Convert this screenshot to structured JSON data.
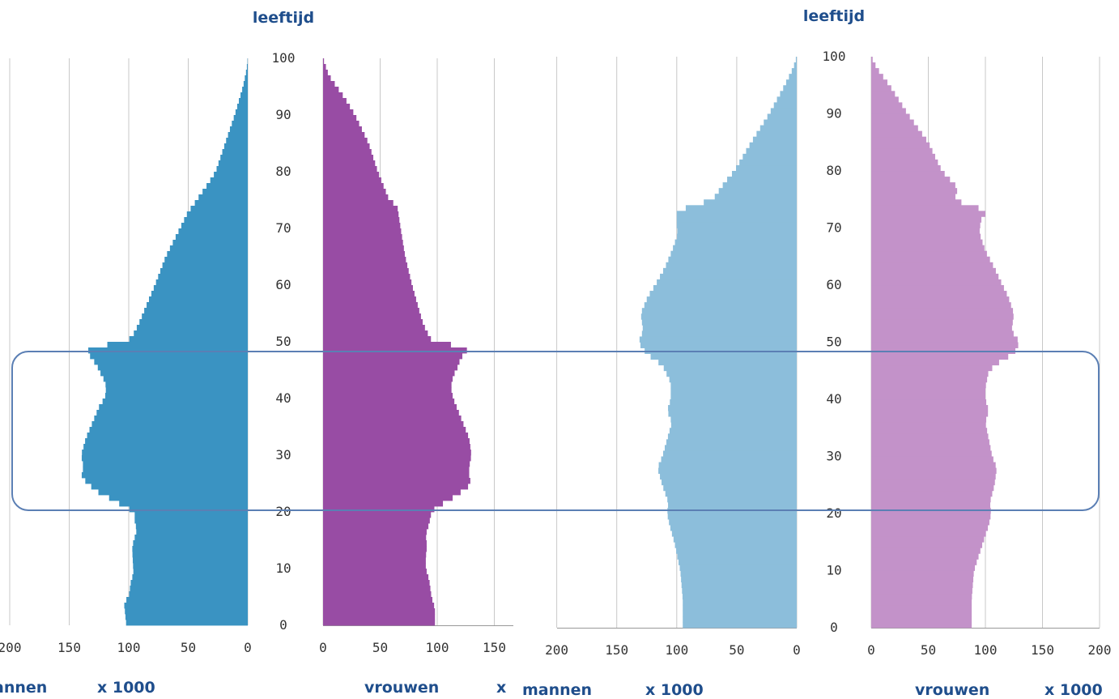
{
  "colors": {
    "left_men": "#3a93c2",
    "left_women": "#984ca4",
    "right_men": "#8cbedb",
    "right_women": "#c392c9",
    "grid": "#c8c8c8",
    "label": "#1f4e8c",
    "highlight_box": "#5b7fb4"
  },
  "chart_data": [
    {
      "type": "bar",
      "orientation": "population-pyramid",
      "ylabel": "leeftijd",
      "y_ticks": [
        0,
        10,
        20,
        30,
        40,
        50,
        60,
        70,
        80,
        90,
        100
      ],
      "men": {
        "label": "annen",
        "unit": "x 1000",
        "ticks": [
          200,
          150,
          100,
          50,
          0
        ],
        "ages": [
          0,
          4,
          5,
          8,
          9,
          13,
          14,
          17,
          18,
          20,
          21,
          22,
          24,
          25,
          26,
          28,
          30,
          33,
          36,
          39,
          40,
          42,
          43,
          45,
          46,
          47,
          48,
          49,
          50,
          51,
          53,
          55,
          60,
          65,
          70,
          73,
          74,
          75,
          78,
          80,
          85,
          90,
          95,
          98,
          100
        ],
        "values": [
          102,
          104,
          100,
          98,
          96,
          97,
          97,
          93,
          95,
          95,
          104,
          112,
          130,
          133,
          140,
          138,
          140,
          136,
          130,
          124,
          120,
          119,
          120,
          125,
          127,
          131,
          134,
          134,
          102,
          97,
          92,
          88,
          78,
          69,
          57,
          50,
          46,
          43,
          33,
          27,
          19,
          11,
          4,
          1,
          0
        ]
      },
      "women": {
        "label": "vrouwen",
        "unit": "x",
        "ticks": [
          0,
          50,
          100,
          150
        ],
        "ages": [
          0,
          3,
          5,
          8,
          10,
          12,
          14,
          16,
          18,
          20,
          21,
          22,
          24,
          25,
          26,
          28,
          30,
          33,
          36,
          40,
          42,
          44,
          46,
          47,
          48,
          49,
          50,
          51,
          53,
          55,
          60,
          65,
          70,
          74,
          75,
          80,
          85,
          90,
          93,
          95,
          97,
          100
        ],
        "values": [
          98,
          98,
          95,
          93,
          90,
          90,
          91,
          90,
          93,
          95,
          100,
          110,
          124,
          130,
          128,
          128,
          130,
          128,
          122,
          114,
          112,
          114,
          119,
          120,
          124,
          128,
          96,
          93,
          88,
          85,
          78,
          72,
          68,
          65,
          58,
          48,
          40,
          28,
          19,
          12,
          5,
          0
        ]
      }
    },
    {
      "type": "bar",
      "orientation": "population-pyramid",
      "ylabel": "leeftijd",
      "y_ticks": [
        0,
        10,
        20,
        30,
        40,
        50,
        60,
        70,
        80,
        90,
        100
      ],
      "men": {
        "label": "mannen",
        "unit": "x 1000",
        "ticks": [
          200,
          150,
          100,
          50,
          0
        ],
        "ages": [
          0,
          5,
          10,
          15,
          18,
          20,
          22,
          25,
          28,
          30,
          33,
          36,
          38,
          40,
          43,
          46,
          48,
          50,
          52,
          55,
          58,
          60,
          63,
          66,
          69,
          70,
          72,
          73,
          75,
          78,
          80,
          85,
          90,
          95,
          98,
          100
        ],
        "values": [
          95,
          95,
          97,
          102,
          106,
          108,
          107,
          112,
          116,
          112,
          108,
          104,
          108,
          105,
          105,
          112,
          125,
          132,
          128,
          130,
          124,
          118,
          110,
          104,
          99,
          100,
          100,
          100,
          70,
          60,
          52,
          38,
          23,
          10,
          3,
          0
        ]
      },
      "women": {
        "label": "vrouwen",
        "unit": "x 1000",
        "ticks": [
          0,
          50,
          100,
          150,
          200
        ],
        "ages": [
          0,
          5,
          10,
          15,
          18,
          20,
          22,
          25,
          28,
          30,
          33,
          36,
          38,
          40,
          42,
          45,
          47,
          48,
          50,
          52,
          55,
          58,
          60,
          63,
          66,
          69,
          70,
          72,
          73,
          74,
          75,
          77,
          80,
          85,
          90,
          95,
          98,
          100
        ],
        "values": [
          88,
          88,
          90,
          98,
          103,
          105,
          104,
          108,
          110,
          106,
          103,
          100,
          103,
          100,
          100,
          103,
          115,
          125,
          130,
          123,
          125,
          120,
          115,
          108,
          100,
          95,
          95,
          97,
          103,
          85,
          73,
          76,
          62,
          50,
          32,
          16,
          5,
          0
        ]
      }
    }
  ]
}
